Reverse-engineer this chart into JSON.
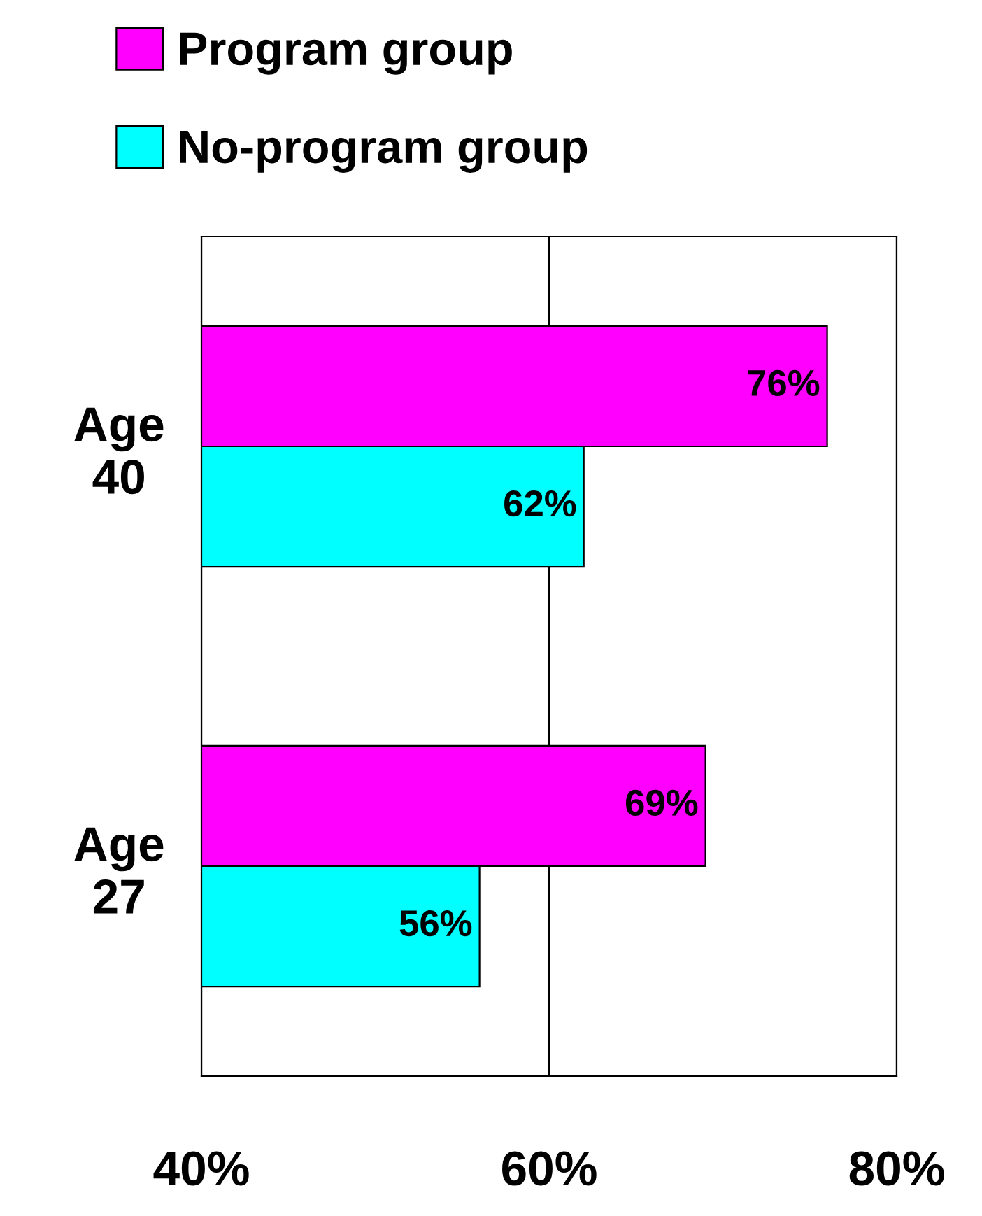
{
  "chart_data": {
    "type": "bar",
    "orientation": "horizontal",
    "categories": [
      "Age 40",
      "Age 27"
    ],
    "series": [
      {
        "name": "Program group",
        "color": "#ff00ff",
        "values": [
          76,
          69
        ]
      },
      {
        "name": "No-program group",
        "color": "#00ffff",
        "values": [
          62,
          56
        ]
      }
    ],
    "xlim": [
      40,
      80
    ],
    "xticks": [
      {
        "value": 40,
        "label": "40%"
      },
      {
        "value": 60,
        "label": "60%"
      },
      {
        "value": 80,
        "label": "80%"
      }
    ],
    "value_labels": [
      [
        "76%",
        "69%"
      ],
      [
        "62%",
        "56%"
      ]
    ],
    "grid": "x",
    "legend": "top"
  }
}
